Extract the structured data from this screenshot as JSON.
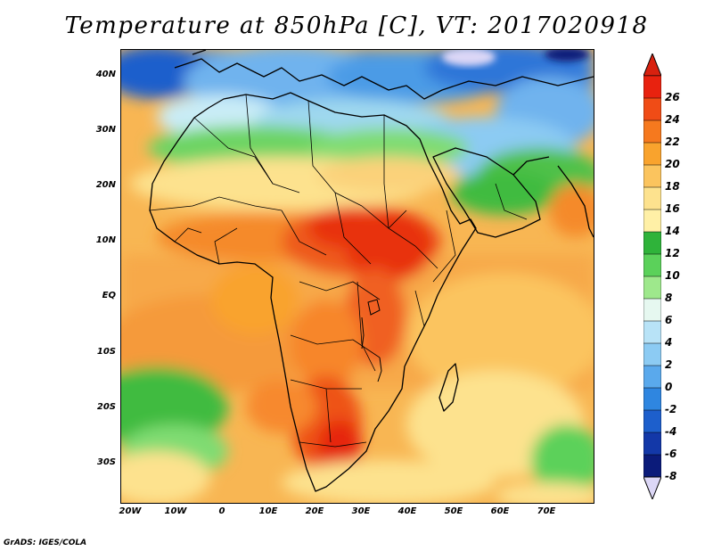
{
  "title": "Temperature at 850hPa [C], VT: 2017020918",
  "credit": "GrADS: IGES/COLA",
  "map": {
    "y_ticks": [
      "40N",
      "30N",
      "20N",
      "10N",
      "EQ",
      "10S",
      "20S",
      "30S"
    ],
    "x_ticks": [
      "20W",
      "10W",
      "0",
      "10E",
      "20E",
      "30E",
      "40E",
      "50E",
      "60E",
      "70E"
    ]
  },
  "colorbar": {
    "labels": [
      "26",
      "24",
      "22",
      "20",
      "18",
      "16",
      "14",
      "12",
      "10",
      "8",
      "6",
      "4",
      "2",
      "0",
      "-2",
      "-4",
      "-6",
      "-8"
    ],
    "colors": [
      "#e8220f",
      "#f04c16",
      "#f6791e",
      "#f9a32d",
      "#fbc45e",
      "#fde28e",
      "#fff0a6",
      "#2fb33a",
      "#5bd15a",
      "#9ee88c",
      "#e6f8f0",
      "#b8e3f7",
      "#8ccbf3",
      "#5aa9ec",
      "#2f86e0",
      "#1d5fcc",
      "#1338a8",
      "#0b1b7a"
    ],
    "over_color": "#d8210f",
    "under_color": "#dcd7f6"
  }
}
